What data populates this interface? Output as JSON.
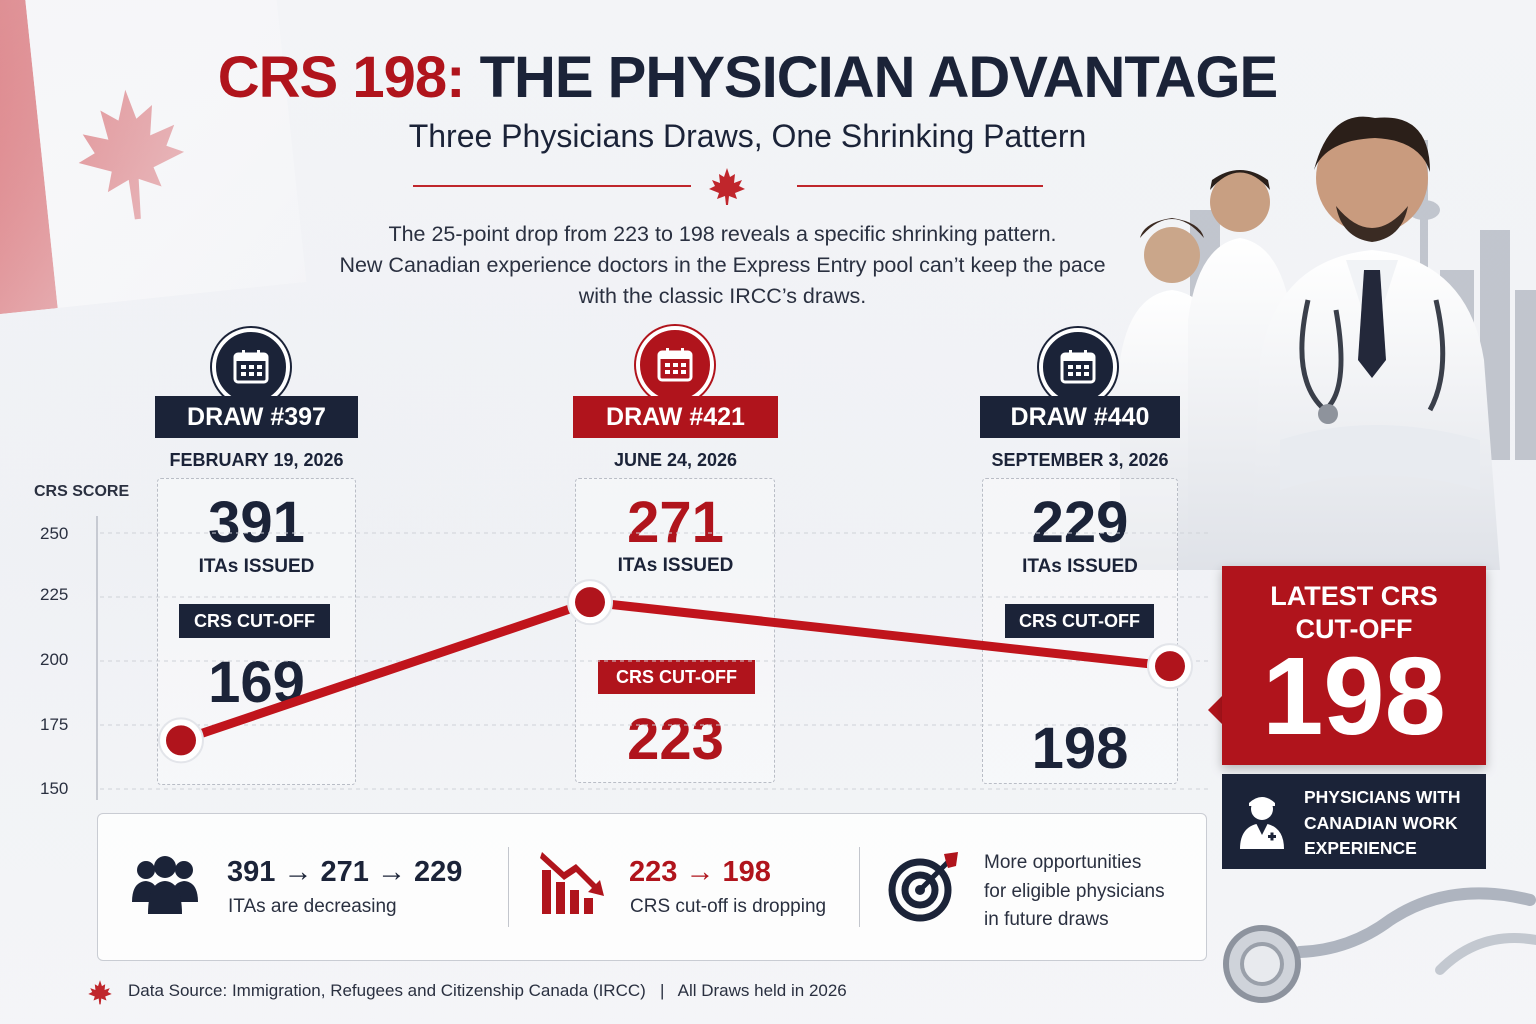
{
  "header": {
    "title_part1": "CRS 198:",
    "title_part2": "THE PHYSICIAN ADVANTAGE",
    "subtitle": "Three Physicians Draws, One Shrinking Pattern",
    "intro_line1": "The 25-point drop from 223 to 198 reveals a specific shrinking pattern.",
    "intro_line2": "New Canadian experience doctors in the Express Entry pool can’t keep the pace",
    "intro_line3": "with the classic IRCC’s draws."
  },
  "draws": [
    {
      "draw": "DRAW #397",
      "date": "FEBRUARY 19, 2026",
      "itas": "391",
      "itas_label": "ITAs ISSUED",
      "cutoff_label": "CRS CUT-OFF",
      "cutoff": "169"
    },
    {
      "draw": "DRAW #421",
      "date": "JUNE 24, 2026",
      "itas": "271",
      "itas_label": "ITAs ISSUED",
      "cutoff_label": "CRS CUT-OFF",
      "cutoff": "223"
    },
    {
      "draw": "DRAW #440",
      "date": "SEPTEMBER 3, 2026",
      "itas": "229",
      "itas_label": "ITAs ISSUED",
      "cutoff_label": "CRS CUT-OFF",
      "cutoff": "198"
    }
  ],
  "latest": {
    "title_line1": "LATEST CRS",
    "title_line2": "CUT-OFF",
    "value": "198"
  },
  "physicians": {
    "line1": "PHYSICIANS WITH",
    "line2": "CANADIAN WORK",
    "line3": "EXPERIENCE"
  },
  "summary": {
    "itas_trend": "391 → 271 → 229",
    "itas_caption": "ITAs are decreasing",
    "crs_trend": "223 → 198",
    "crs_caption": "CRS cut-off is dropping",
    "opp_line1": "More opportunities",
    "opp_line2": "for eligible physicians",
    "opp_line3": "in future draws"
  },
  "footer": {
    "source": "Data Source: Immigration, Refugees and Citizenship Canada (IRCC)   |   All Draws held in 2026"
  },
  "icons": [
    "calendar-icon",
    "maple-leaf-icon",
    "people-group-icon",
    "declining-bar-chart-icon",
    "target-icon",
    "doctor-icon",
    "stethoscope-icon"
  ],
  "colors": {
    "accent_red": "#b0141c",
    "navy": "#1b2338",
    "line_red": "#c0141c"
  },
  "chart_data": {
    "type": "line",
    "ylabel": "CRS SCORE",
    "ylim": [
      150,
      250
    ],
    "yticks": [
      250,
      225,
      200,
      175,
      150
    ],
    "categories": [
      "DRAW #397",
      "DRAW #421",
      "DRAW #440"
    ],
    "values": [
      169,
      223,
      198
    ],
    "grid": true
  }
}
